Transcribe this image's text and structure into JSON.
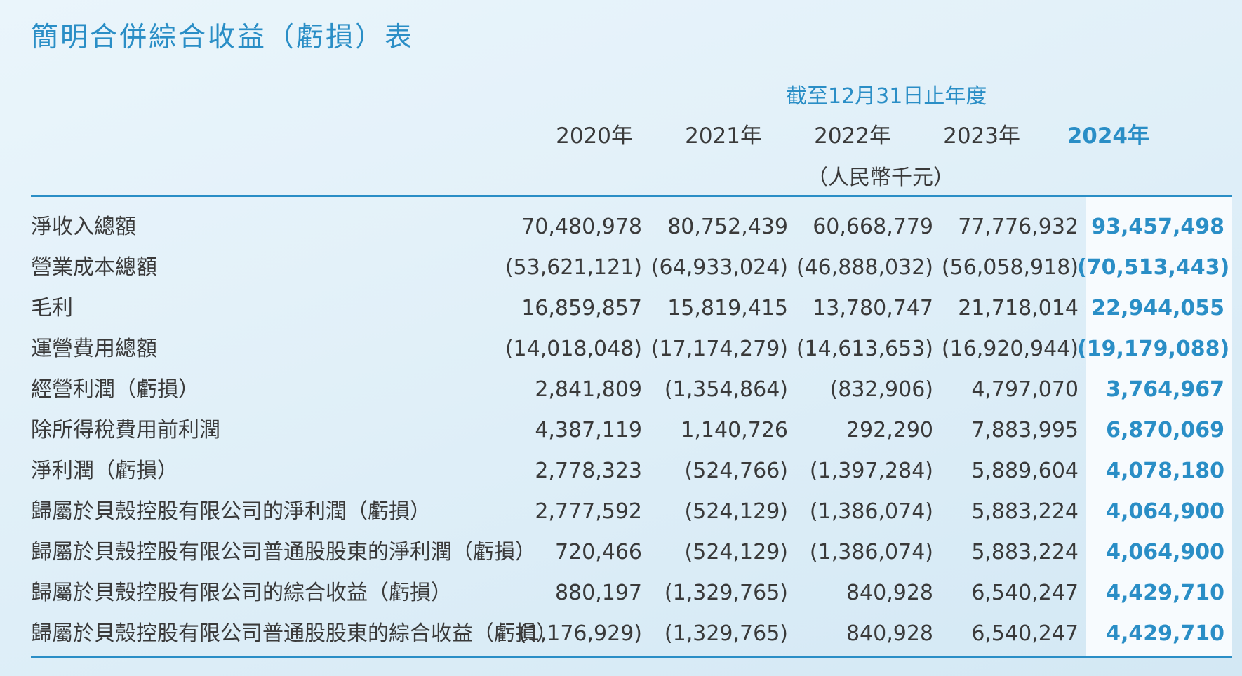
{
  "title": "簡明合併綜合收益（虧損）表",
  "period_label": "截至12月31日止年度",
  "years": [
    "2020年",
    "2021年",
    "2022年",
    "2023年",
    "2024年"
  ],
  "unit": "（人民幣千元）",
  "colors": {
    "accent": "#2a8ec6",
    "text": "#3a3a3a",
    "highlight_column_bg": "#f7fbfe"
  },
  "rows": [
    {
      "label": "淨收入總額",
      "values": [
        "70,480,978",
        "80,752,439",
        "60,668,779",
        "77,776,932",
        "93,457,498"
      ]
    },
    {
      "label": "營業成本總額",
      "values": [
        "(53,621,121)",
        "(64,933,024)",
        "(46,888,032)",
        "(56,058,918)",
        "(70,513,443)"
      ]
    },
    {
      "label": "毛利",
      "values": [
        "16,859,857",
        "15,819,415",
        "13,780,747",
        "21,718,014",
        "22,944,055"
      ]
    },
    {
      "label": "運營費用總額",
      "values": [
        "(14,018,048)",
        "(17,174,279)",
        "(14,613,653)",
        "(16,920,944)",
        "(19,179,088)"
      ]
    },
    {
      "label": "經營利潤（虧損）",
      "values": [
        "2,841,809",
        "(1,354,864)",
        "(832,906)",
        "4,797,070",
        "3,764,967"
      ]
    },
    {
      "label": "除所得稅費用前利潤",
      "values": [
        "4,387,119",
        "1,140,726",
        "292,290",
        "7,883,995",
        "6,870,069"
      ]
    },
    {
      "label": "淨利潤（虧損）",
      "values": [
        "2,778,323",
        "(524,766)",
        "(1,397,284)",
        "5,889,604",
        "4,078,180"
      ]
    },
    {
      "label": "歸屬於貝殼控股有限公司的淨利潤（虧損）",
      "values": [
        "2,777,592",
        "(524,129)",
        "(1,386,074)",
        "5,883,224",
        "4,064,900"
      ]
    },
    {
      "label": "歸屬於貝殼控股有限公司普通股股東的淨利潤（虧損）",
      "values": [
        "720,466",
        "(524,129)",
        "(1,386,074)",
        "5,883,224",
        "4,064,900"
      ]
    },
    {
      "label": "歸屬於貝殼控股有限公司的綜合收益（虧損）",
      "values": [
        "880,197",
        "(1,329,765)",
        "840,928",
        "6,540,247",
        "4,429,710"
      ]
    },
    {
      "label": "歸屬於貝殼控股有限公司普通股股東的綜合收益（虧損）",
      "values": [
        "(1,176,929)",
        "(1,329,765)",
        "840,928",
        "6,540,247",
        "4,429,710"
      ]
    }
  ]
}
